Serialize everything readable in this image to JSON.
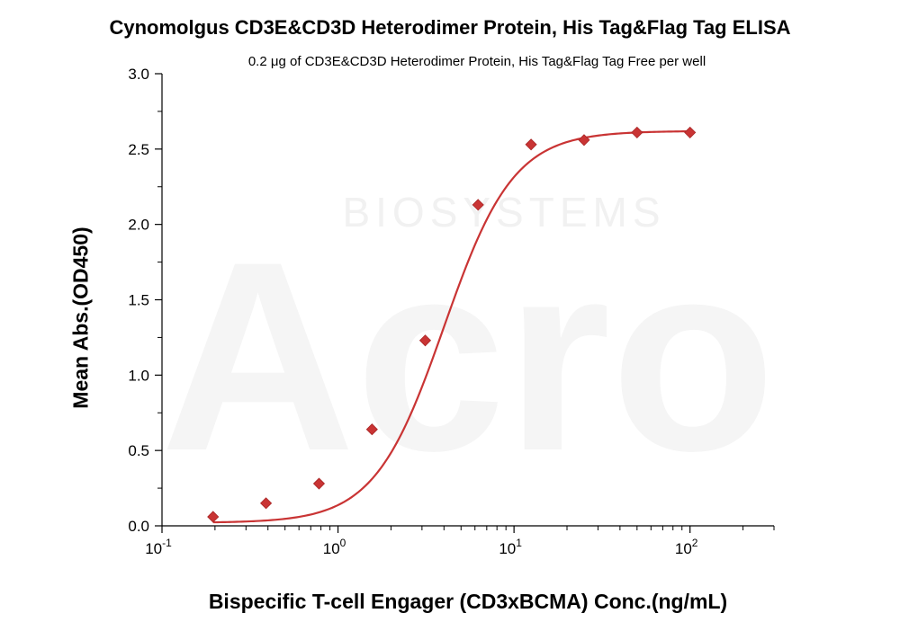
{
  "chart_data": {
    "type": "scatter",
    "title": "Cynomolgus CD3E&CD3D Heterodimer Protein, His Tag&Flag Tag  ELISA",
    "subtitle": "0.2 μg of  CD3E&CD3D Heterodimer Protein, His Tag&Flag Tag Free per well",
    "xlabel": "Bispecific T-cell Engager (CD3xBCMA) Conc.(ng/mL)",
    "ylabel": "Mean Abs.(OD450)",
    "x_scale": "log",
    "xlim": [
      0.1,
      300
    ],
    "ylim": [
      0,
      3.0
    ],
    "x_ticks": [
      {
        "value": 0.1,
        "base": "10",
        "exp": "-1"
      },
      {
        "value": 1,
        "base": "10",
        "exp": "0"
      },
      {
        "value": 10,
        "base": "10",
        "exp": "1"
      },
      {
        "value": 100,
        "base": "10",
        "exp": "2"
      }
    ],
    "y_ticks": [
      "0.0",
      "0.5",
      "1.0",
      "1.5",
      "2.0",
      "2.5",
      "3.0"
    ],
    "series": [
      {
        "x": [
          0.195,
          0.39,
          0.78,
          1.56,
          3.13,
          6.25,
          12.5,
          25,
          50,
          100
        ],
        "y": [
          0.06,
          0.15,
          0.28,
          0.64,
          1.23,
          2.13,
          2.53,
          2.56,
          2.61,
          2.61
        ],
        "color": "#c93434"
      }
    ],
    "fit_curve": {
      "bottom": 0.02,
      "top": 2.62,
      "ec50": 4.0,
      "hill": 2.2,
      "color": "#c93434"
    },
    "watermark": "Acro BIOSYSTEMS",
    "grid": false,
    "legend": "none"
  }
}
